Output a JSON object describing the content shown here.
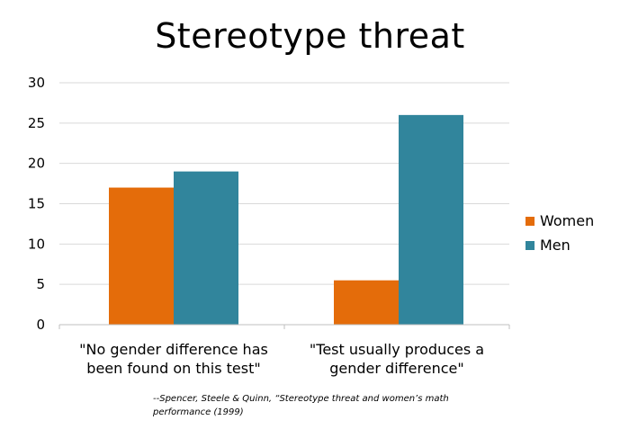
{
  "chart_data": {
    "type": "bar",
    "title": "Stereotype threat",
    "categories": [
      "\"No gender difference has been found on this test\"",
      "\"Test usually produces a gender difference\""
    ],
    "series": [
      {
        "name": "Women",
        "color": "#E46C0A",
        "values": [
          17,
          5.5
        ]
      },
      {
        "name": "Men",
        "color": "#31859C",
        "values": [
          19,
          26
        ]
      }
    ],
    "ylim": [
      0,
      30
    ],
    "yticks": [
      0,
      5,
      10,
      15,
      20,
      25,
      30
    ],
    "grid": true,
    "legend": "right"
  },
  "citation": "--Spencer, Steele & Quinn, “Stereotype threat and women’s math performance (1999)"
}
